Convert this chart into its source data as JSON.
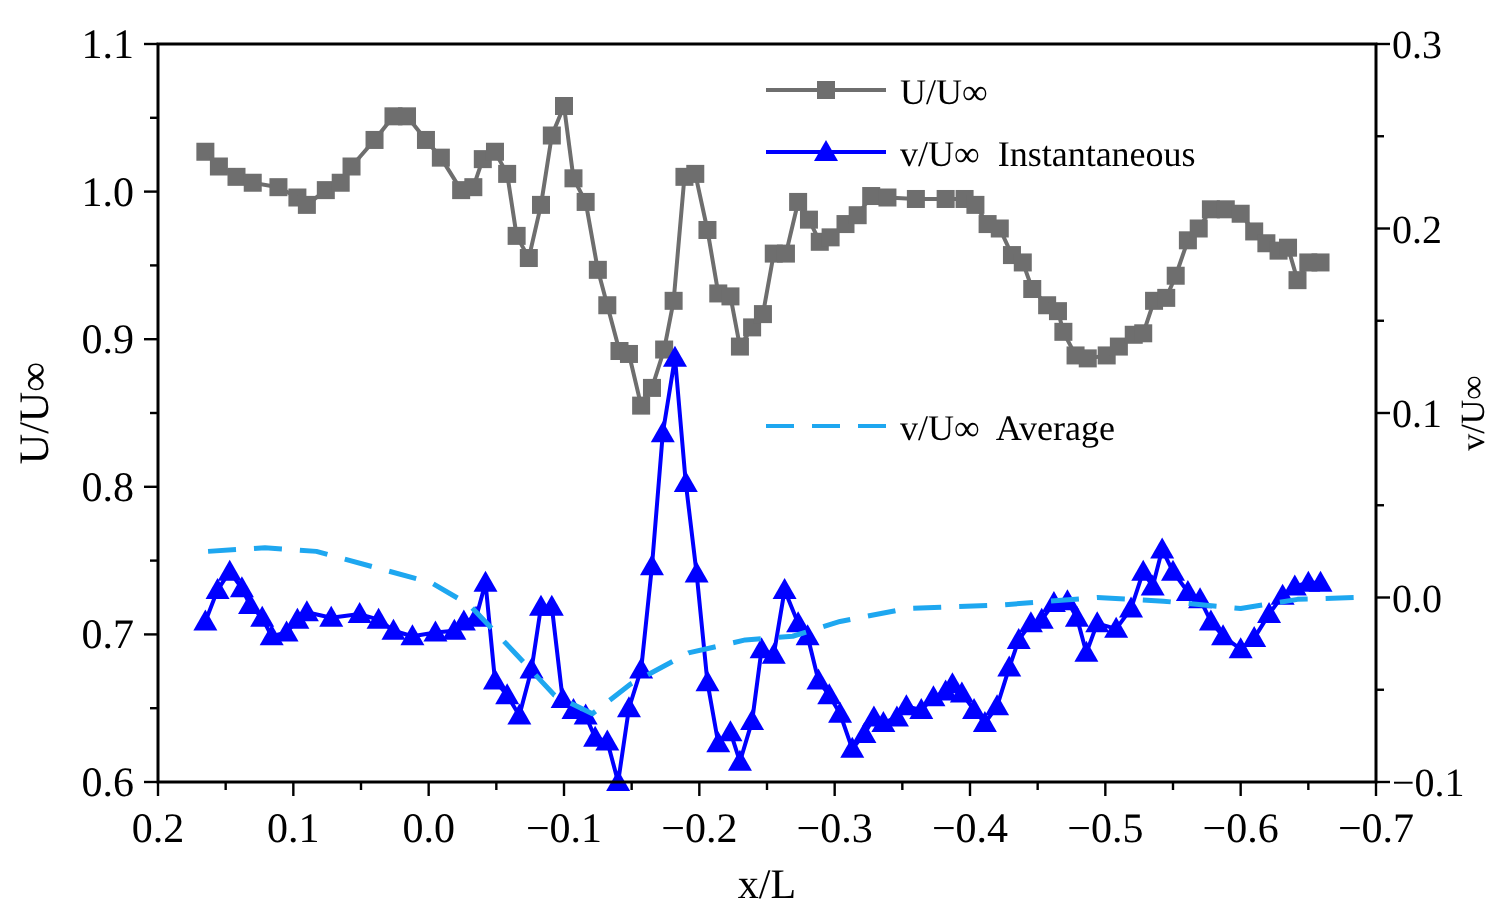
{
  "chart_data": {
    "type": "line",
    "xlabel": "x/L",
    "ylabel": "U/U∞",
    "y2label": "v/U∞",
    "xlim": [
      0.2,
      -0.7
    ],
    "xticks": [
      {
        "value": 0.2,
        "label": "0.2"
      },
      {
        "value": 0.15,
        "label": null
      },
      {
        "value": 0.1,
        "label": "0.1"
      },
      {
        "value": 0.05,
        "label": null
      },
      {
        "value": 0,
        "label": "0.0"
      },
      {
        "value": -0.05,
        "label": null
      },
      {
        "value": -0.1,
        "label": "−0.1"
      },
      {
        "value": -0.15,
        "label": null
      },
      {
        "value": -0.2,
        "label": "−0.2"
      },
      {
        "value": -0.25,
        "label": null
      },
      {
        "value": -0.3,
        "label": "−0.3"
      },
      {
        "value": -0.35,
        "label": null
      },
      {
        "value": -0.4,
        "label": "−0.4"
      },
      {
        "value": -0.45,
        "label": null
      },
      {
        "value": -0.5,
        "label": "−0.5"
      },
      {
        "value": -0.55,
        "label": null
      },
      {
        "value": -0.6,
        "label": "−0.6"
      },
      {
        "value": -0.65,
        "label": null
      },
      {
        "value": -0.7,
        "label": "−0.7"
      }
    ],
    "ylim": [
      0.6,
      1.1
    ],
    "yticks": [
      {
        "value": 0.6,
        "label": "0.6"
      },
      {
        "value": 0.65,
        "label": null
      },
      {
        "value": 0.7,
        "label": "0.7"
      },
      {
        "value": 0.75,
        "label": null
      },
      {
        "value": 0.8,
        "label": "0.8"
      },
      {
        "value": 0.85,
        "label": null
      },
      {
        "value": 0.9,
        "label": "0.9"
      },
      {
        "value": 0.95,
        "label": null
      },
      {
        "value": 1.0,
        "label": "1.0"
      },
      {
        "value": 1.05,
        "label": null
      },
      {
        "value": 1.1,
        "label": "1.1"
      }
    ],
    "y2lim": [
      -0.1,
      0.3
    ],
    "y2ticks": [
      {
        "value": -0.1,
        "label": "−0.1"
      },
      {
        "value": -0.05,
        "label": null
      },
      {
        "value": 0,
        "label": "0.0"
      },
      {
        "value": 0.05,
        "label": null
      },
      {
        "value": 0.1,
        "label": "0.1"
      },
      {
        "value": 0.15,
        "label": null
      },
      {
        "value": 0.2,
        "label": "0.2"
      },
      {
        "value": 0.25,
        "label": null
      },
      {
        "value": 0.3,
        "label": "0.3"
      }
    ],
    "grid": false,
    "legend": "top right",
    "series": [
      {
        "name": "U/U∞",
        "color": "#6e6e6e",
        "marker": "square",
        "line_style": "solid",
        "x": [
          0.165,
          0.155,
          0.142,
          0.13,
          0.111,
          0.097,
          0.09,
          0.076,
          0.065,
          0.057,
          0.04,
          0.026,
          0.016,
          0.002,
          -0.009,
          -0.024,
          -0.033,
          -0.04,
          -0.049,
          -0.058,
          -0.065,
          -0.074,
          -0.083,
          -0.091,
          -0.1,
          -0.107,
          -0.116,
          -0.125,
          -0.132,
          -0.141,
          -0.148,
          -0.157,
          -0.165,
          -0.174,
          -0.181,
          -0.189,
          -0.197,
          -0.206,
          -0.214,
          -0.223,
          -0.23,
          -0.239,
          -0.247,
          -0.255,
          -0.264,
          -0.273,
          -0.281,
          -0.289,
          -0.297,
          -0.308,
          -0.317,
          -0.327,
          -0.339,
          -0.36,
          -0.382,
          -0.396,
          -0.404,
          -0.413,
          -0.422,
          -0.431,
          -0.439,
          -0.446,
          -0.457,
          -0.465,
          -0.469,
          -0.478,
          -0.487,
          -0.501,
          -0.51,
          -0.521,
          -0.528,
          -0.536,
          -0.545,
          -0.552,
          -0.561,
          -0.569,
          -0.578,
          -0.589,
          -0.6,
          -0.61,
          -0.619,
          -0.628,
          -0.635,
          -0.642,
          -0.65,
          -0.659
        ],
        "values": [
          1.027,
          1.017,
          1.01,
          1.006,
          1.003,
          0.996,
          0.991,
          1.001,
          1.006,
          1.017,
          1.035,
          1.051,
          1.051,
          1.035,
          1.023,
          1.001,
          1.003,
          1.022,
          1.027,
          1.012,
          0.97,
          0.955,
          0.991,
          1.038,
          1.058,
          1.009,
          0.993,
          0.947,
          0.923,
          0.892,
          0.89,
          0.855,
          0.867,
          0.893,
          0.926,
          1.01,
          1.012,
          0.974,
          0.931,
          0.929,
          0.895,
          0.908,
          0.917,
          0.958,
          0.958,
          0.993,
          0.981,
          0.966,
          0.969,
          0.978,
          0.984,
          0.997,
          0.996,
          0.995,
          0.995,
          0.995,
          0.991,
          0.978,
          0.975,
          0.957,
          0.952,
          0.934,
          0.923,
          0.919,
          0.905,
          0.889,
          0.887,
          0.889,
          0.895,
          0.903,
          0.904,
          0.926,
          0.928,
          0.943,
          0.967,
          0.975,
          0.988,
          0.988,
          0.985,
          0.973,
          0.965,
          0.96,
          0.962,
          0.94,
          0.952,
          0.952
        ]
      },
      {
        "name": "v/U∞  Instantaneous",
        "color": "#0000ff",
        "marker": "triangle",
        "line_style": "solid",
        "axis": "y2",
        "x": [
          0.165,
          0.156,
          0.147,
          0.138,
          0.132,
          0.123,
          0.116,
          0.105,
          0.097,
          0.09,
          0.072,
          0.051,
          0.037,
          0.026,
          0.012,
          -0.005,
          -0.019,
          -0.026,
          -0.035,
          -0.042,
          -0.049,
          -0.058,
          -0.067,
          -0.076,
          -0.083,
          -0.091,
          -0.099,
          -0.107,
          -0.116,
          -0.123,
          -0.132,
          -0.14,
          -0.148,
          -0.157,
          -0.165,
          -0.173,
          -0.182,
          -0.19,
          -0.198,
          -0.206,
          -0.214,
          -0.223,
          -0.23,
          -0.239,
          -0.246,
          -0.255,
          -0.263,
          -0.273,
          -0.28,
          -0.288,
          -0.296,
          -0.304,
          -0.313,
          -0.322,
          -0.329,
          -0.336,
          -0.346,
          -0.353,
          -0.364,
          -0.373,
          -0.382,
          -0.387,
          -0.394,
          -0.403,
          -0.411,
          -0.42,
          -0.429,
          -0.436,
          -0.445,
          -0.453,
          -0.462,
          -0.472,
          -0.479,
          -0.486,
          -0.494,
          -0.508,
          -0.519,
          -0.528,
          -0.535,
          -0.542,
          -0.55,
          -0.561,
          -0.57,
          -0.578,
          -0.587,
          -0.6,
          -0.61,
          -0.621,
          -0.631,
          -0.64,
          -0.65,
          -0.659
        ],
        "values": [
          -0.013,
          0.004,
          0.014,
          0.005,
          -0.004,
          -0.011,
          -0.021,
          -0.019,
          -0.012,
          -0.008,
          -0.011,
          -0.009,
          -0.012,
          -0.018,
          -0.021,
          -0.019,
          -0.018,
          -0.013,
          -0.011,
          0.008,
          -0.045,
          -0.053,
          -0.064,
          -0.039,
          -0.005,
          -0.005,
          -0.055,
          -0.061,
          -0.064,
          -0.076,
          -0.078,
          -0.1,
          -0.06,
          -0.039,
          0.017,
          0.089,
          0.13,
          0.062,
          0.013,
          -0.046,
          -0.079,
          -0.073,
          -0.089,
          -0.067,
          -0.028,
          -0.031,
          0.004,
          -0.014,
          -0.021,
          -0.045,
          -0.053,
          -0.063,
          -0.082,
          -0.074,
          -0.065,
          -0.068,
          -0.065,
          -0.059,
          -0.061,
          -0.054,
          -0.051,
          -0.047,
          -0.052,
          -0.061,
          -0.068,
          -0.059,
          -0.038,
          -0.023,
          -0.014,
          -0.012,
          -0.003,
          -0.002,
          -0.011,
          -0.03,
          -0.014,
          -0.017,
          -0.006,
          0.014,
          0.006,
          0.026,
          0.014,
          0.003,
          -0.001,
          -0.013,
          -0.021,
          -0.028,
          -0.022,
          -0.009,
          0.001,
          0.006,
          0.008,
          0.008
        ]
      },
      {
        "name": "v/U∞  Average",
        "color": "#1ea7f0",
        "marker": "none",
        "line_style": "dashed",
        "axis": "y2",
        "x": [
          0.163,
          0.121,
          0.083,
          0.033,
          -0.002,
          -0.03,
          -0.065,
          -0.093,
          -0.121,
          -0.149,
          -0.192,
          -0.234,
          -0.269,
          -0.304,
          -0.353,
          -0.424,
          -0.494,
          -0.543,
          -0.6,
          -0.642,
          -0.684
        ],
        "values": [
          0.025,
          0.027,
          0.025,
          0.015,
          0.008,
          -0.004,
          -0.031,
          -0.053,
          -0.063,
          -0.047,
          -0.03,
          -0.023,
          -0.021,
          -0.013,
          -0.006,
          -0.004,
          0,
          -0.002,
          -0.006,
          -0.001,
          0
        ]
      }
    ]
  }
}
